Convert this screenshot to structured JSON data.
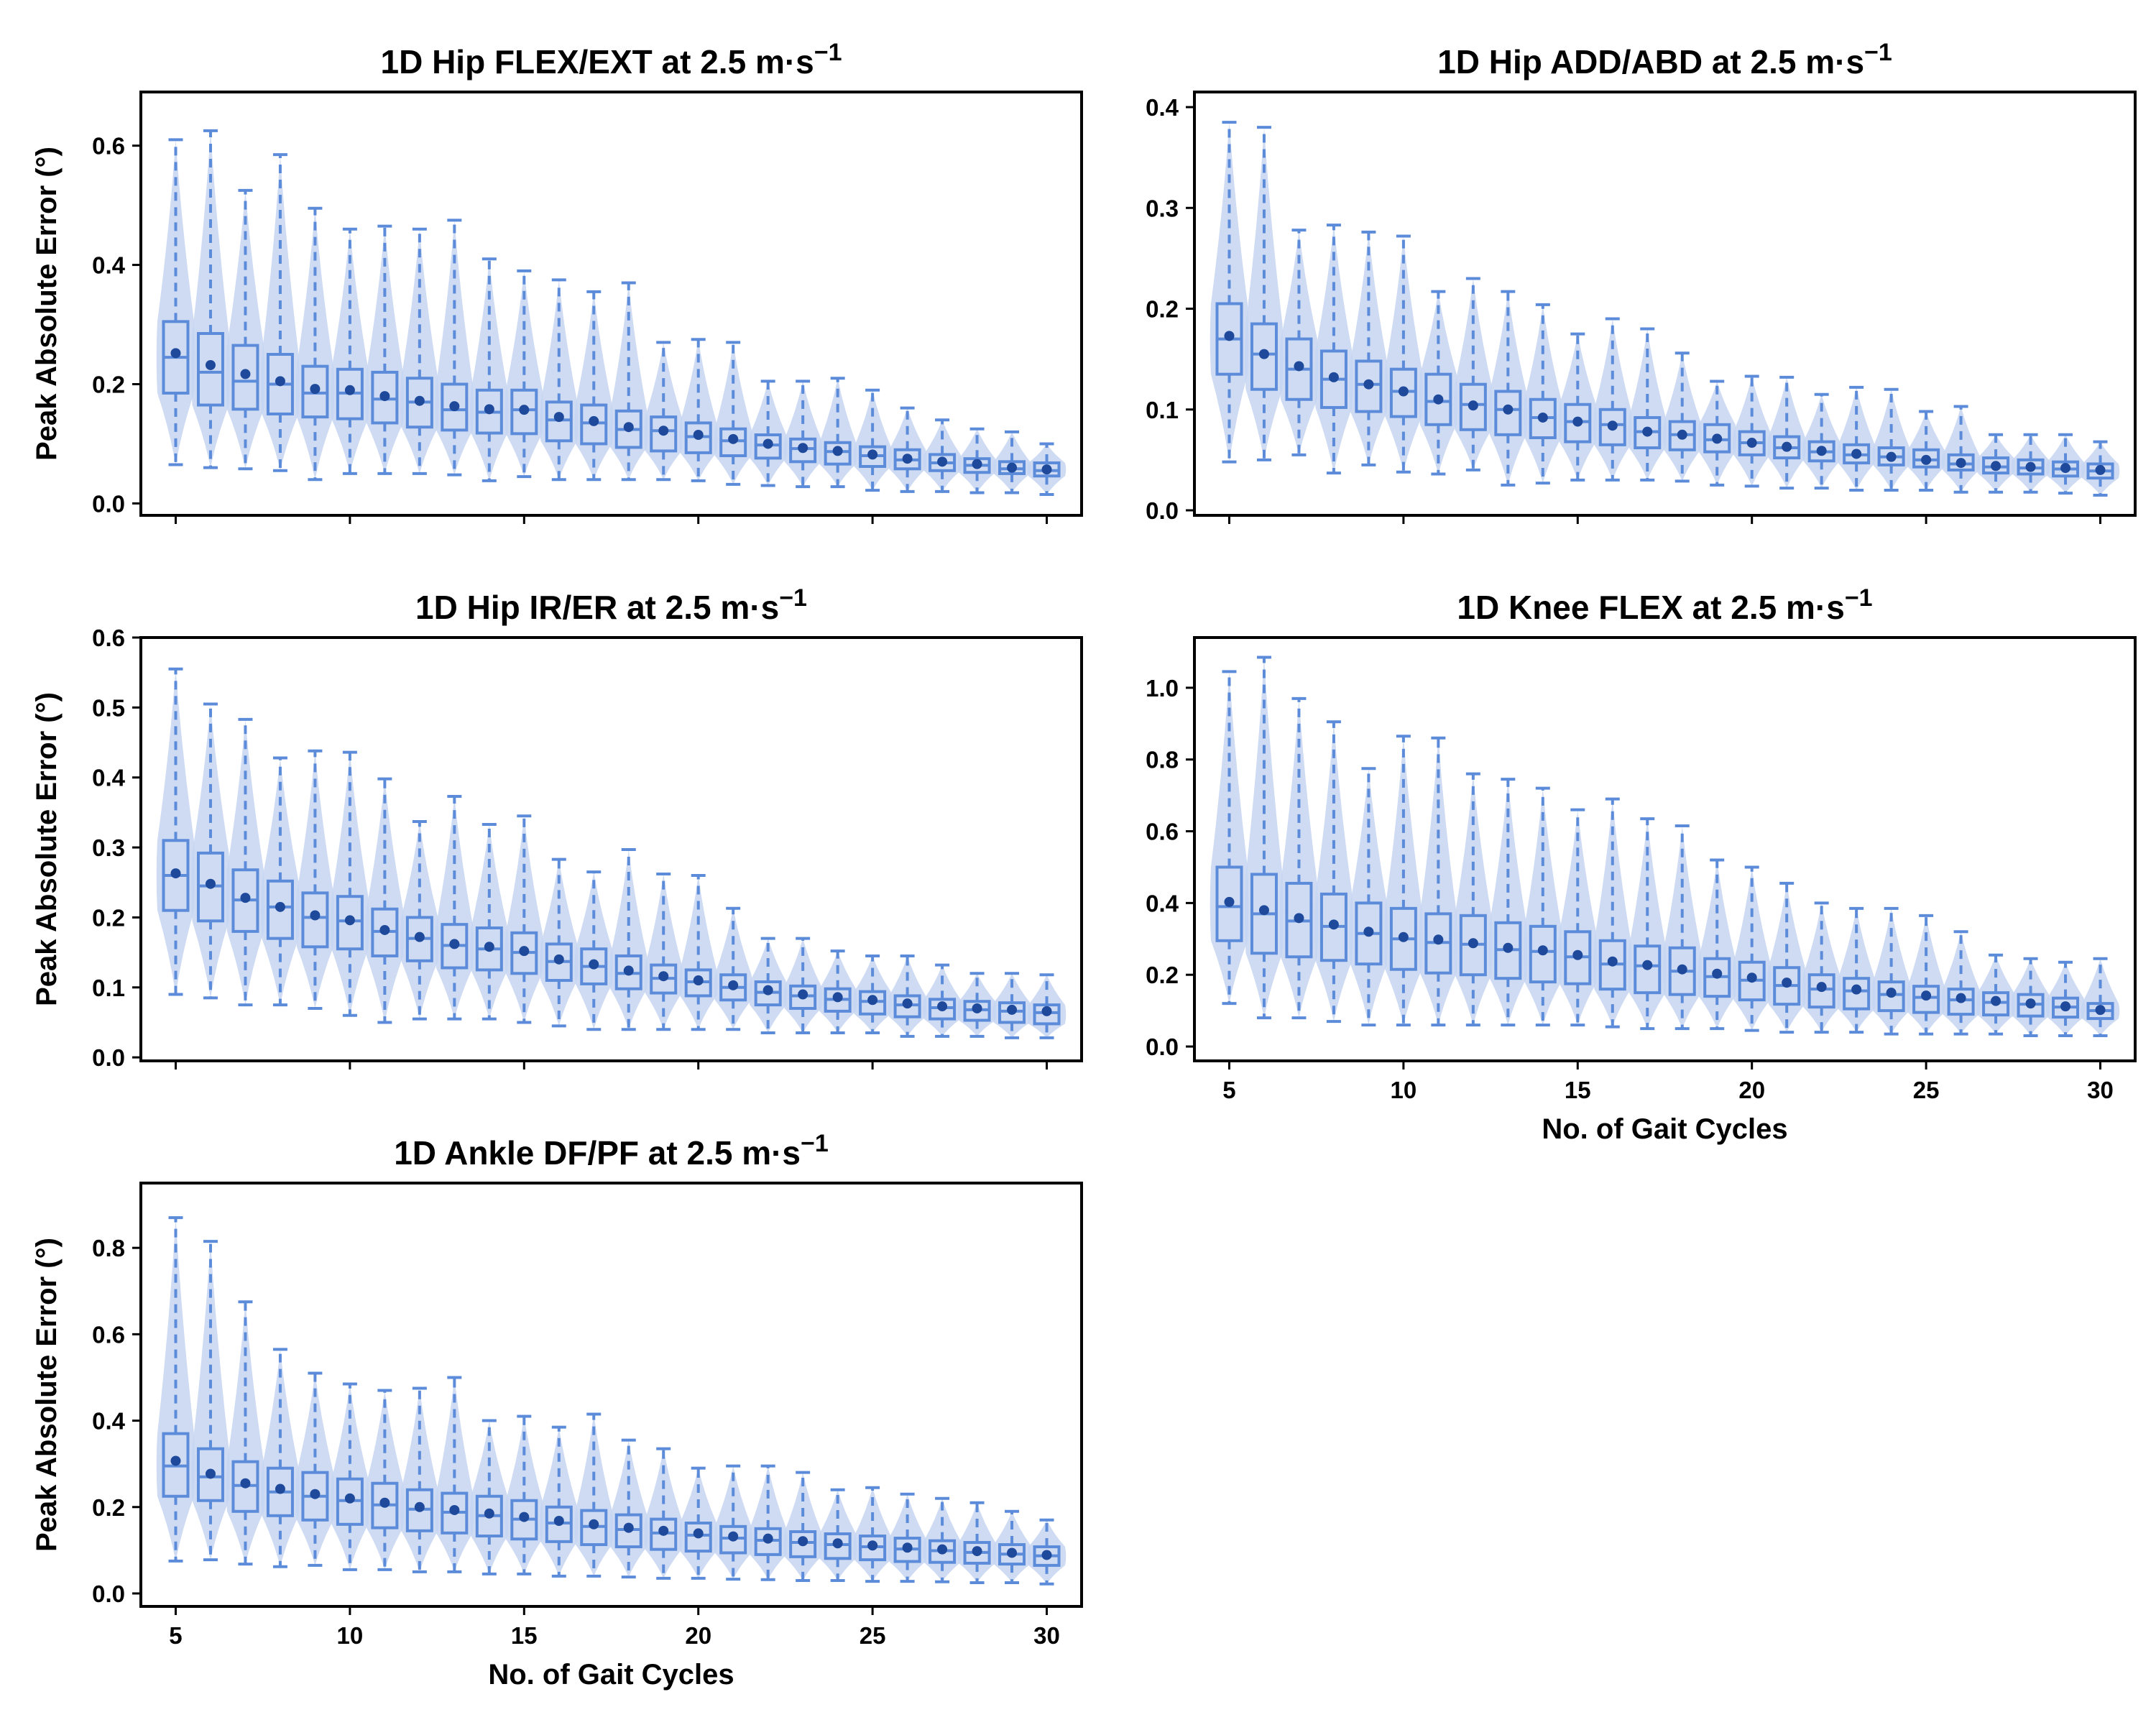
{
  "figure": {
    "x_axis_label": "No. of Gait Cycles",
    "y_axis_label": "Peak Absolute Error (°)",
    "x_tick_labels": [
      "5",
      "10",
      "15",
      "20",
      "25",
      "30"
    ]
  },
  "chart_data": [
    {
      "type": "box",
      "title": "1D Hip FLEX/EXT at 2.5 m·s",
      "title_superscript": "−1",
      "ylabel": "Peak Absolute Error (°)",
      "xlabel": "",
      "ylim": [
        -0.02,
        0.69
      ],
      "y_ticks": [
        0.0,
        0.2,
        0.4,
        0.6
      ],
      "y_tick_labels": [
        "0.0",
        "0.2",
        "0.4",
        "0.6"
      ],
      "x": [
        5,
        6,
        7,
        8,
        9,
        10,
        11,
        12,
        13,
        14,
        15,
        16,
        17,
        18,
        19,
        20,
        21,
        22,
        23,
        24,
        25,
        26,
        27,
        28,
        29,
        30
      ],
      "q1": [
        0.185,
        0.165,
        0.158,
        0.15,
        0.145,
        0.142,
        0.135,
        0.128,
        0.123,
        0.118,
        0.117,
        0.105,
        0.1,
        0.094,
        0.088,
        0.085,
        0.08,
        0.076,
        0.07,
        0.066,
        0.062,
        0.058,
        0.055,
        0.052,
        0.05,
        0.046
      ],
      "median": [
        0.245,
        0.22,
        0.205,
        0.2,
        0.185,
        0.185,
        0.175,
        0.17,
        0.157,
        0.153,
        0.157,
        0.14,
        0.135,
        0.124,
        0.122,
        0.112,
        0.105,
        0.098,
        0.092,
        0.087,
        0.08,
        0.073,
        0.068,
        0.064,
        0.058,
        0.055
      ],
      "q3": [
        0.305,
        0.285,
        0.265,
        0.25,
        0.23,
        0.225,
        0.22,
        0.21,
        0.2,
        0.19,
        0.19,
        0.17,
        0.165,
        0.155,
        0.145,
        0.135,
        0.125,
        0.115,
        0.108,
        0.102,
        0.095,
        0.09,
        0.082,
        0.075,
        0.07,
        0.068
      ],
      "whisker_low": [
        0.065,
        0.06,
        0.058,
        0.055,
        0.04,
        0.05,
        0.05,
        0.05,
        0.048,
        0.038,
        0.045,
        0.04,
        0.04,
        0.04,
        0.04,
        0.038,
        0.032,
        0.03,
        0.028,
        0.028,
        0.022,
        0.02,
        0.02,
        0.018,
        0.018,
        0.015
      ],
      "whisker_high": [
        0.61,
        0.625,
        0.525,
        0.585,
        0.495,
        0.46,
        0.465,
        0.46,
        0.475,
        0.41,
        0.39,
        0.375,
        0.355,
        0.37,
        0.27,
        0.275,
        0.27,
        0.205,
        0.205,
        0.21,
        0.19,
        0.16,
        0.14,
        0.125,
        0.12,
        0.1
      ],
      "mean": [
        0.252,
        0.232,
        0.217,
        0.205,
        0.192,
        0.19,
        0.18,
        0.172,
        0.163,
        0.158,
        0.157,
        0.145,
        0.138,
        0.128,
        0.122,
        0.115,
        0.108,
        0.1,
        0.093,
        0.088,
        0.082,
        0.075,
        0.07,
        0.066,
        0.06,
        0.057
      ]
    },
    {
      "type": "box",
      "title": "1D Hip ADD/ABD at 2.5 m·s",
      "title_superscript": "−1",
      "ylabel": "",
      "xlabel": "",
      "ylim": [
        -0.005,
        0.415
      ],
      "y_ticks": [
        0.0,
        0.1,
        0.2,
        0.3,
        0.4
      ],
      "y_tick_labels": [
        "0.0",
        "0.1",
        "0.2",
        "0.3",
        "0.4"
      ],
      "x": [
        5,
        6,
        7,
        8,
        9,
        10,
        11,
        12,
        13,
        14,
        15,
        16,
        17,
        18,
        19,
        20,
        21,
        22,
        23,
        24,
        25,
        26,
        27,
        28,
        29,
        30
      ],
      "q1": [
        0.135,
        0.12,
        0.11,
        0.102,
        0.098,
        0.093,
        0.085,
        0.08,
        0.075,
        0.072,
        0.068,
        0.065,
        0.062,
        0.06,
        0.058,
        0.055,
        0.052,
        0.049,
        0.047,
        0.045,
        0.043,
        0.04,
        0.037,
        0.036,
        0.034,
        0.032
      ],
      "median": [
        0.17,
        0.155,
        0.14,
        0.13,
        0.125,
        0.118,
        0.108,
        0.105,
        0.1,
        0.092,
        0.088,
        0.085,
        0.078,
        0.075,
        0.07,
        0.067,
        0.062,
        0.058,
        0.055,
        0.053,
        0.05,
        0.046,
        0.043,
        0.042,
        0.041,
        0.039
      ],
      "q3": [
        0.205,
        0.185,
        0.17,
        0.158,
        0.148,
        0.14,
        0.135,
        0.125,
        0.118,
        0.11,
        0.105,
        0.1,
        0.092,
        0.088,
        0.085,
        0.078,
        0.073,
        0.068,
        0.065,
        0.062,
        0.06,
        0.055,
        0.052,
        0.05,
        0.048,
        0.046
      ],
      "whisker_low": [
        0.048,
        0.05,
        0.055,
        0.037,
        0.045,
        0.038,
        0.036,
        0.04,
        0.025,
        0.027,
        0.03,
        0.03,
        0.03,
        0.029,
        0.025,
        0.024,
        0.022,
        0.022,
        0.02,
        0.02,
        0.02,
        0.018,
        0.018,
        0.018,
        0.017,
        0.015
      ],
      "whisker_high": [
        0.385,
        0.38,
        0.278,
        0.283,
        0.276,
        0.272,
        0.217,
        0.23,
        0.217,
        0.204,
        0.175,
        0.19,
        0.18,
        0.156,
        0.128,
        0.133,
        0.132,
        0.115,
        0.122,
        0.12,
        0.098,
        0.103,
        0.075,
        0.075,
        0.075,
        0.068
      ],
      "mean": [
        0.173,
        0.155,
        0.143,
        0.132,
        0.125,
        0.118,
        0.11,
        0.104,
        0.1,
        0.092,
        0.088,
        0.084,
        0.078,
        0.075,
        0.071,
        0.067,
        0.063,
        0.059,
        0.056,
        0.053,
        0.05,
        0.047,
        0.044,
        0.043,
        0.042,
        0.04
      ]
    },
    {
      "type": "box",
      "title": "1D Hip IR/ER at 2.5 m·s",
      "title_superscript": "−1",
      "ylabel": "Peak Absolute Error (°)",
      "xlabel": "",
      "ylim": [
        -0.005,
        0.6
      ],
      "y_ticks": [
        0.0,
        0.1,
        0.2,
        0.3,
        0.4,
        0.5,
        0.6
      ],
      "y_tick_labels": [
        "0.0",
        "0.1",
        "0.2",
        "0.3",
        "0.4",
        "0.5",
        "0.6"
      ],
      "x": [
        5,
        6,
        7,
        8,
        9,
        10,
        11,
        12,
        13,
        14,
        15,
        16,
        17,
        18,
        19,
        20,
        21,
        22,
        23,
        24,
        25,
        26,
        27,
        28,
        29,
        30
      ],
      "q1": [
        0.21,
        0.195,
        0.18,
        0.17,
        0.158,
        0.155,
        0.145,
        0.138,
        0.128,
        0.125,
        0.12,
        0.11,
        0.105,
        0.098,
        0.092,
        0.088,
        0.082,
        0.075,
        0.07,
        0.066,
        0.062,
        0.058,
        0.055,
        0.053,
        0.05,
        0.048
      ],
      "median": [
        0.26,
        0.245,
        0.225,
        0.215,
        0.2,
        0.195,
        0.18,
        0.17,
        0.16,
        0.155,
        0.15,
        0.137,
        0.13,
        0.12,
        0.113,
        0.108,
        0.1,
        0.093,
        0.088,
        0.083,
        0.08,
        0.075,
        0.071,
        0.068,
        0.066,
        0.064
      ],
      "q3": [
        0.31,
        0.292,
        0.268,
        0.252,
        0.235,
        0.23,
        0.212,
        0.2,
        0.19,
        0.185,
        0.178,
        0.162,
        0.155,
        0.145,
        0.132,
        0.125,
        0.118,
        0.108,
        0.102,
        0.098,
        0.094,
        0.088,
        0.083,
        0.08,
        0.078,
        0.075
      ],
      "whisker_low": [
        0.09,
        0.085,
        0.075,
        0.075,
        0.07,
        0.06,
        0.05,
        0.055,
        0.055,
        0.055,
        0.05,
        0.045,
        0.04,
        0.04,
        0.04,
        0.04,
        0.04,
        0.035,
        0.035,
        0.035,
        0.035,
        0.03,
        0.03,
        0.03,
        0.028,
        0.028
      ],
      "whisker_high": [
        0.555,
        0.505,
        0.483,
        0.428,
        0.438,
        0.436,
        0.398,
        0.337,
        0.373,
        0.333,
        0.345,
        0.283,
        0.265,
        0.297,
        0.262,
        0.26,
        0.213,
        0.17,
        0.17,
        0.152,
        0.145,
        0.145,
        0.132,
        0.12,
        0.12,
        0.118
      ],
      "mean": [
        0.263,
        0.248,
        0.228,
        0.215,
        0.203,
        0.196,
        0.182,
        0.172,
        0.162,
        0.158,
        0.152,
        0.14,
        0.133,
        0.124,
        0.116,
        0.11,
        0.103,
        0.096,
        0.09,
        0.086,
        0.082,
        0.077,
        0.073,
        0.07,
        0.068,
        0.066
      ]
    },
    {
      "type": "box",
      "title": "1D Knee FLEX at 2.5 m·s",
      "title_superscript": "−1",
      "ylabel": "",
      "xlabel": "No. of Gait Cycles",
      "ylim": [
        -0.04,
        1.14
      ],
      "y_ticks": [
        0.0,
        0.2,
        0.4,
        0.6,
        0.8,
        1.0
      ],
      "y_tick_labels": [
        "0.0",
        "0.2",
        "0.4",
        "0.6",
        "0.8",
        "1.0"
      ],
      "x": [
        5,
        6,
        7,
        8,
        9,
        10,
        11,
        12,
        13,
        14,
        15,
        16,
        17,
        18,
        19,
        20,
        21,
        22,
        23,
        24,
        25,
        26,
        27,
        28,
        29,
        30
      ],
      "q1": [
        0.295,
        0.26,
        0.25,
        0.24,
        0.23,
        0.215,
        0.205,
        0.2,
        0.19,
        0.18,
        0.175,
        0.16,
        0.15,
        0.145,
        0.14,
        0.13,
        0.118,
        0.11,
        0.105,
        0.1,
        0.095,
        0.09,
        0.088,
        0.085,
        0.082,
        0.078
      ],
      "median": [
        0.39,
        0.37,
        0.35,
        0.335,
        0.315,
        0.3,
        0.29,
        0.285,
        0.27,
        0.265,
        0.25,
        0.23,
        0.225,
        0.21,
        0.195,
        0.185,
        0.17,
        0.16,
        0.155,
        0.145,
        0.137,
        0.13,
        0.123,
        0.118,
        0.11,
        0.1
      ],
      "q3": [
        0.5,
        0.48,
        0.455,
        0.425,
        0.4,
        0.385,
        0.37,
        0.365,
        0.345,
        0.335,
        0.32,
        0.295,
        0.28,
        0.275,
        0.245,
        0.235,
        0.22,
        0.2,
        0.19,
        0.18,
        0.168,
        0.16,
        0.15,
        0.145,
        0.135,
        0.12
      ],
      "whisker_low": [
        0.12,
        0.08,
        0.08,
        0.07,
        0.06,
        0.06,
        0.06,
        0.06,
        0.06,
        0.06,
        0.06,
        0.055,
        0.05,
        0.05,
        0.05,
        0.045,
        0.04,
        0.04,
        0.04,
        0.035,
        0.035,
        0.035,
        0.035,
        0.03,
        0.03,
        0.03
      ],
      "whisker_high": [
        1.045,
        1.085,
        0.97,
        0.905,
        0.775,
        0.865,
        0.86,
        0.76,
        0.745,
        0.72,
        0.66,
        0.69,
        0.635,
        0.615,
        0.52,
        0.5,
        0.455,
        0.4,
        0.385,
        0.385,
        0.365,
        0.32,
        0.255,
        0.245,
        0.235,
        0.245
      ],
      "mean": [
        0.403,
        0.38,
        0.358,
        0.34,
        0.32,
        0.305,
        0.298,
        0.288,
        0.275,
        0.268,
        0.255,
        0.237,
        0.227,
        0.215,
        0.203,
        0.192,
        0.178,
        0.166,
        0.159,
        0.15,
        0.142,
        0.135,
        0.127,
        0.12,
        0.112,
        0.102
      ]
    },
    {
      "type": "box",
      "title": "1D Ankle DF/PF at 2.5 m·s",
      "title_superscript": "−1",
      "ylabel": "Peak Absolute Error (°)",
      "xlabel": "No. of Gait Cycles",
      "ylim": [
        -0.03,
        0.95
      ],
      "y_ticks": [
        0.0,
        0.2,
        0.4,
        0.6,
        0.8
      ],
      "y_tick_labels": [
        "0.0",
        "0.2",
        "0.4",
        "0.6",
        "0.8"
      ],
      "x": [
        5,
        6,
        7,
        8,
        9,
        10,
        11,
        12,
        13,
        14,
        15,
        16,
        17,
        18,
        19,
        20,
        21,
        22,
        23,
        24,
        25,
        26,
        27,
        28,
        29,
        30
      ],
      "q1": [
        0.225,
        0.215,
        0.19,
        0.18,
        0.17,
        0.16,
        0.152,
        0.145,
        0.14,
        0.133,
        0.126,
        0.12,
        0.113,
        0.108,
        0.102,
        0.098,
        0.094,
        0.09,
        0.085,
        0.081,
        0.078,
        0.074,
        0.072,
        0.07,
        0.068,
        0.065
      ],
      "median": [
        0.295,
        0.27,
        0.25,
        0.235,
        0.225,
        0.215,
        0.205,
        0.195,
        0.188,
        0.18,
        0.172,
        0.163,
        0.155,
        0.148,
        0.14,
        0.135,
        0.128,
        0.123,
        0.118,
        0.113,
        0.108,
        0.103,
        0.099,
        0.095,
        0.091,
        0.087
      ],
      "q3": [
        0.37,
        0.335,
        0.305,
        0.29,
        0.28,
        0.265,
        0.255,
        0.24,
        0.232,
        0.225,
        0.215,
        0.2,
        0.192,
        0.182,
        0.172,
        0.163,
        0.155,
        0.15,
        0.143,
        0.138,
        0.133,
        0.128,
        0.122,
        0.118,
        0.113,
        0.108
      ],
      "whisker_low": [
        0.075,
        0.078,
        0.068,
        0.062,
        0.065,
        0.055,
        0.055,
        0.05,
        0.05,
        0.045,
        0.045,
        0.04,
        0.04,
        0.038,
        0.035,
        0.035,
        0.033,
        0.032,
        0.03,
        0.03,
        0.028,
        0.028,
        0.027,
        0.025,
        0.025,
        0.022
      ],
      "whisker_high": [
        0.87,
        0.815,
        0.675,
        0.565,
        0.51,
        0.485,
        0.47,
        0.475,
        0.5,
        0.4,
        0.41,
        0.385,
        0.415,
        0.355,
        0.335,
        0.29,
        0.295,
        0.295,
        0.28,
        0.24,
        0.245,
        0.23,
        0.22,
        0.21,
        0.19,
        0.17
      ],
      "mean": [
        0.307,
        0.277,
        0.255,
        0.242,
        0.23,
        0.22,
        0.21,
        0.2,
        0.193,
        0.185,
        0.177,
        0.168,
        0.16,
        0.152,
        0.145,
        0.139,
        0.132,
        0.127,
        0.121,
        0.116,
        0.111,
        0.106,
        0.102,
        0.098,
        0.094,
        0.089
      ]
    }
  ]
}
